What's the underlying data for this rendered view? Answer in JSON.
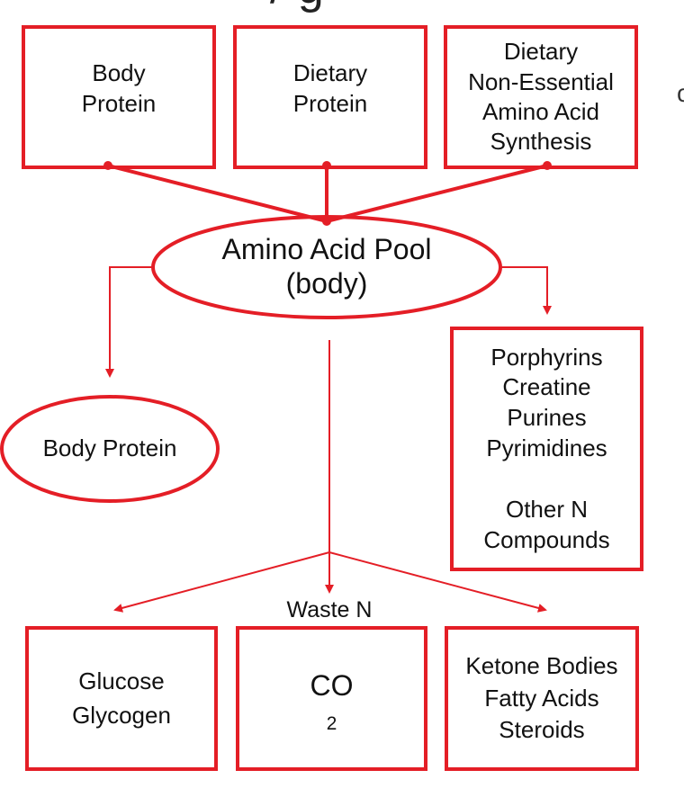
{
  "colors": {
    "accent": "#e41e26",
    "text": "#111111"
  },
  "top_row": [
    {
      "lines": [
        "Body",
        "Protein"
      ]
    },
    {
      "lines": [
        "Dietary",
        "Protein"
      ]
    },
    {
      "lines": [
        "Dietary",
        "Non-Essential",
        "Amino Acid",
        "Synthesis"
      ]
    }
  ],
  "pool": {
    "line1": "Amino Acid Pool",
    "line2": "(body)"
  },
  "body_protein": {
    "label": "Body Protein"
  },
  "n_compounds": {
    "lines": [
      "Porphyrins",
      "Creatine",
      "Purines",
      "Pyrimidines"
    ],
    "other_lines": [
      "Other N",
      "Compounds"
    ]
  },
  "waste": {
    "label": "Waste N"
  },
  "bottom_row": [
    {
      "lines": [
        "Glucose",
        "Glycogen"
      ]
    },
    {
      "main": "CO",
      "subscript": "2"
    },
    {
      "lines": [
        "Ketone Bodies",
        "Fatty Acids",
        "Steroids"
      ]
    }
  ],
  "cut_text": {
    "title_fragment": "/ g",
    "edge_glyph": "c"
  }
}
